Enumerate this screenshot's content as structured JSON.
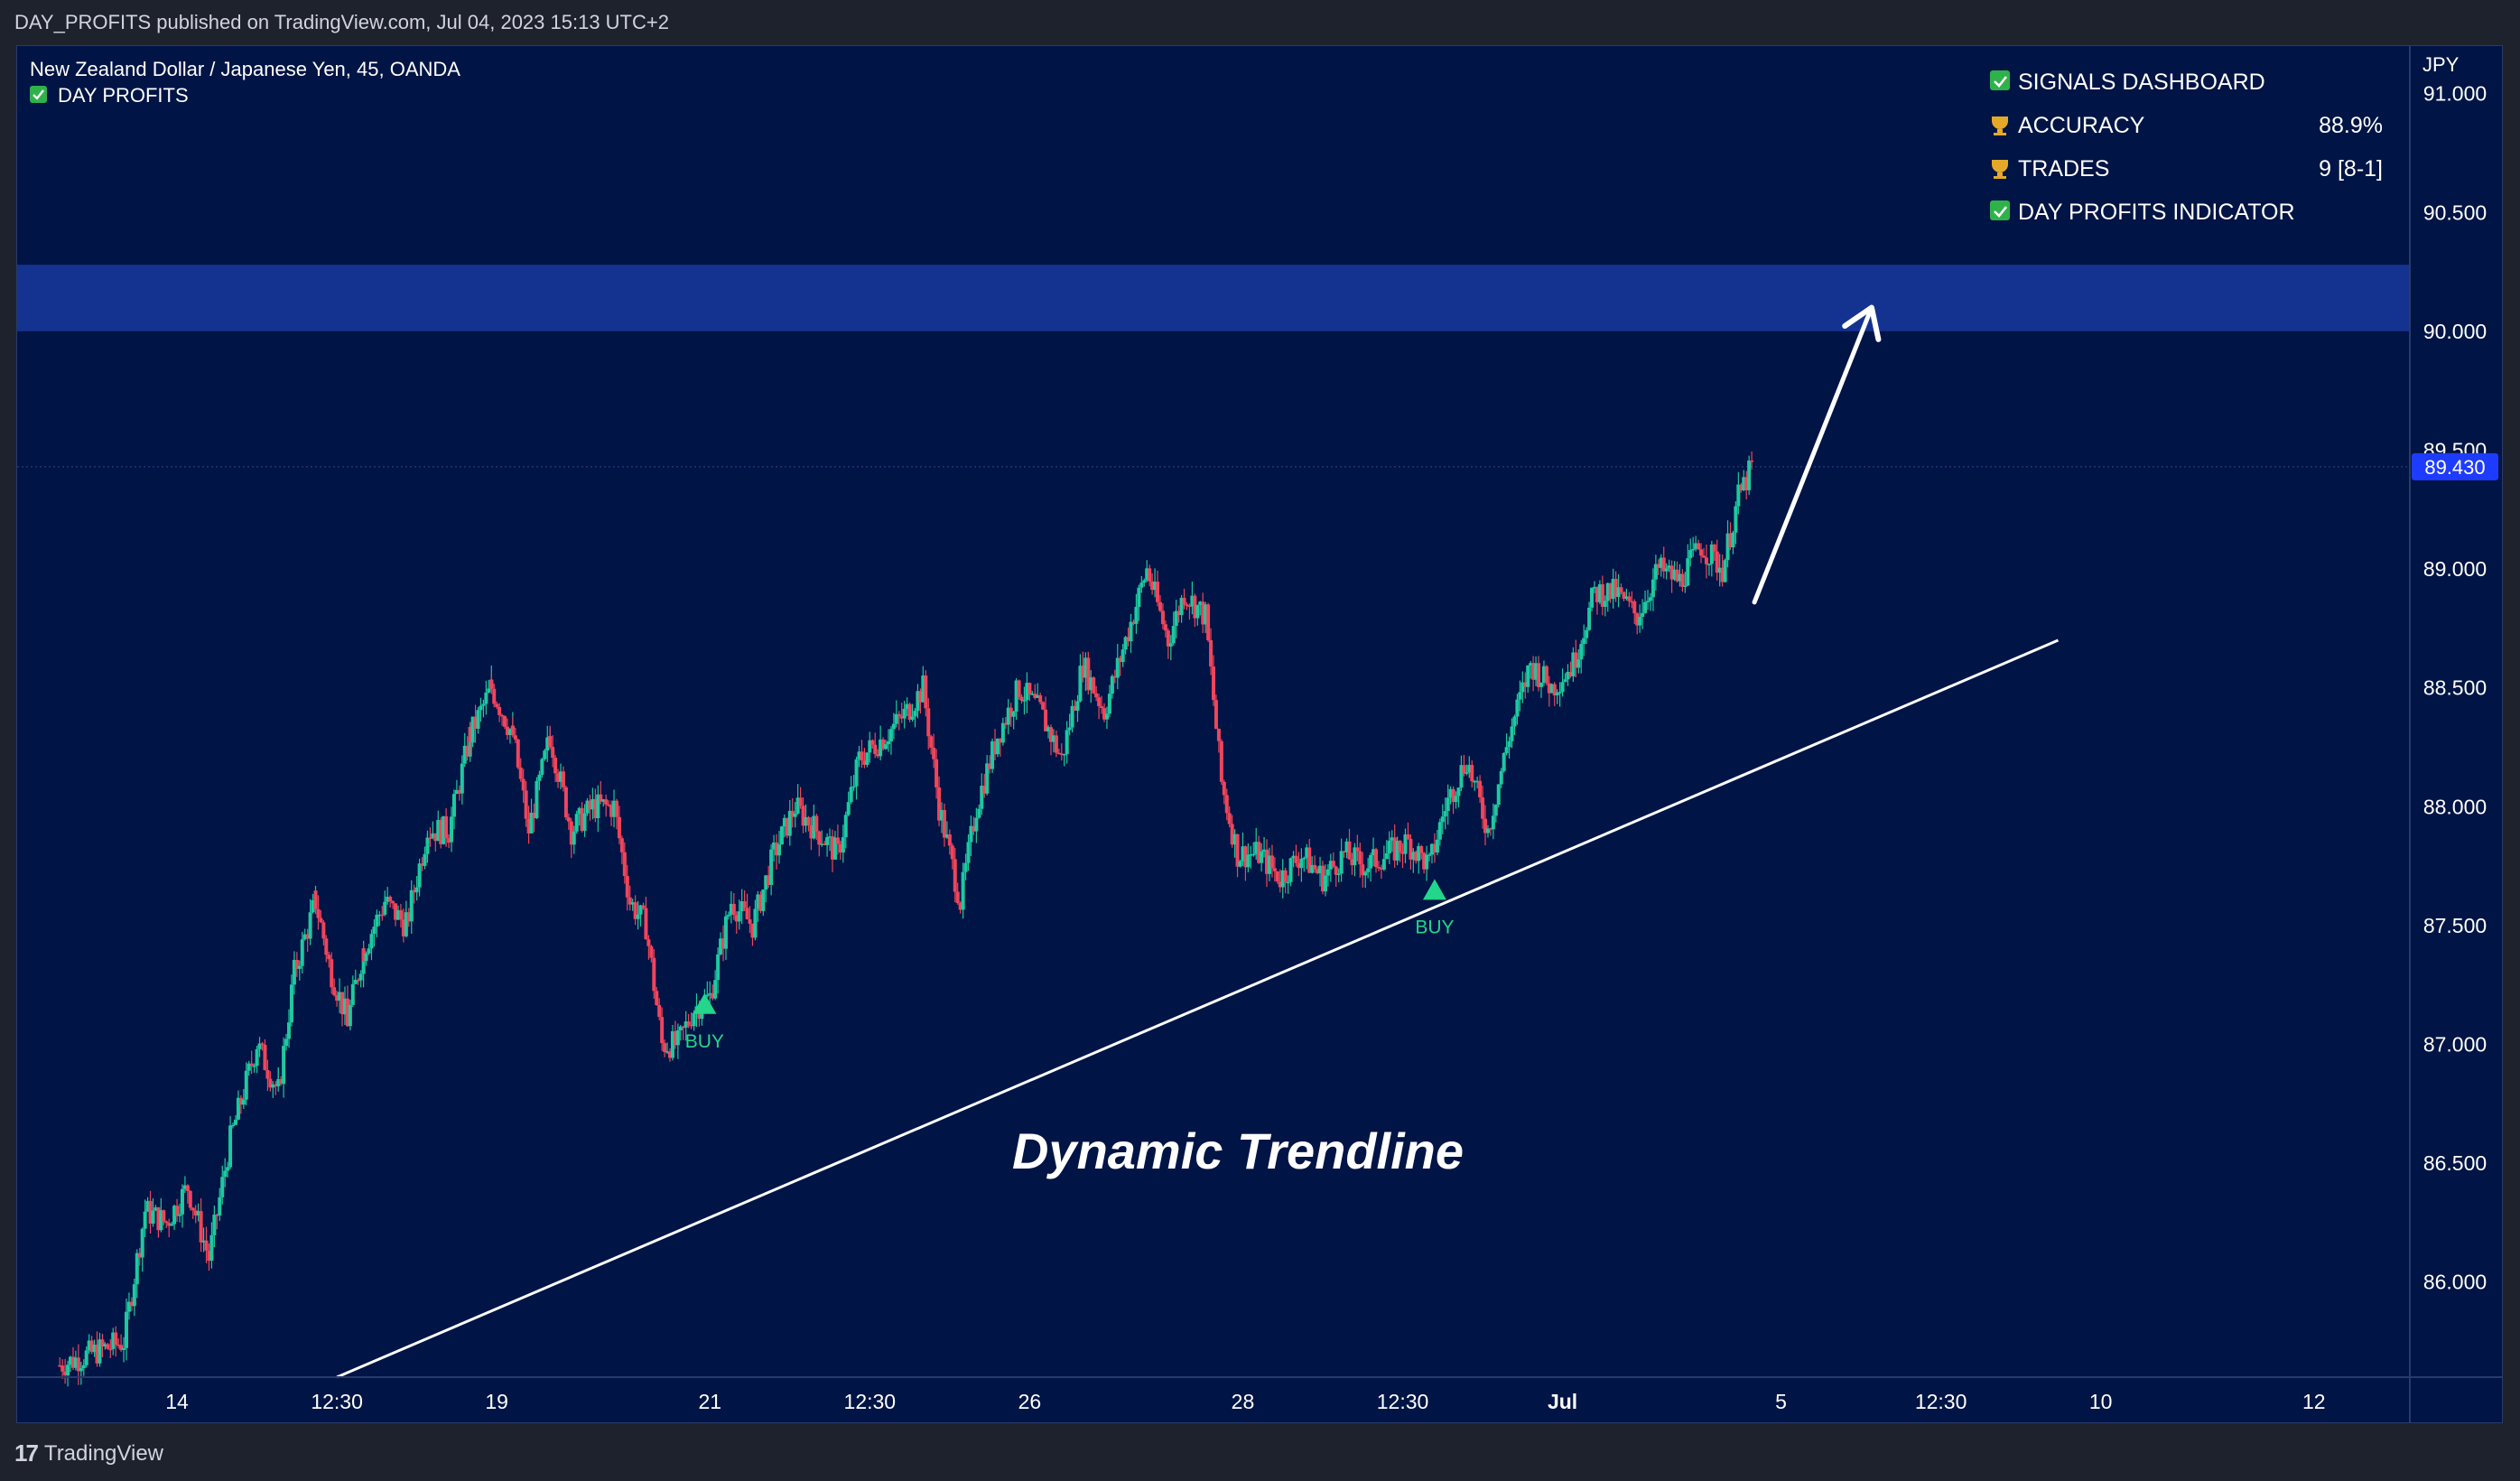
{
  "header": {
    "publish_text": "DAY_PROFITS published on TradingView.com, Jul 04, 2023 15:13 UTC+2"
  },
  "footer": {
    "brand": "TradingView"
  },
  "legend": {
    "symbol_line": "New Zealand Dollar / Japanese Yen, 45, OANDA",
    "indicator_line": "DAY PROFITS"
  },
  "dashboard": {
    "title": "SIGNALS DASHBOARD",
    "rows": [
      {
        "icon": "trophy-icon",
        "label": "ACCURACY",
        "value": "88.9%"
      },
      {
        "icon": "trophy-icon",
        "label": "TRADES",
        "value": "9 [8-1]"
      }
    ],
    "footer": "DAY PROFITS INDICATOR"
  },
  "annotation": {
    "text": "Dynamic Trendline"
  },
  "signals": [
    {
      "label": "BUY",
      "x": 10.9,
      "y": 87.17
    },
    {
      "label": "BUY",
      "x": 24.6,
      "y": 87.65
    }
  ],
  "colors": {
    "background": "#001445",
    "zone": "#14328f",
    "up": "#1ec9a0",
    "down": "#f0455a",
    "signal": "#22d68a",
    "price_tag": "#1e3cff"
  },
  "chart_data": {
    "type": "candlestick",
    "currency": "JPY",
    "ylim": [
      85.6,
      91.2
    ],
    "xlim": [
      -2,
      42.9
    ],
    "x_ticks": [
      {
        "label": "14",
        "x": 1
      },
      {
        "label": "12:30",
        "x": 4
      },
      {
        "label": "19",
        "x": 7
      },
      {
        "label": "21",
        "x": 11
      },
      {
        "label": "12:30",
        "x": 14
      },
      {
        "label": "26",
        "x": 17
      },
      {
        "label": "28",
        "x": 21
      },
      {
        "label": "12:30",
        "x": 24
      },
      {
        "label": "Jul",
        "x": 27
      },
      {
        "label": "5",
        "x": 31.1
      },
      {
        "label": "12:30",
        "x": 34.1
      },
      {
        "label": "10",
        "x": 37.1
      },
      {
        "label": "12",
        "x": 41.1
      }
    ],
    "y_ticks": [
      "86.000",
      "86.500",
      "87.000",
      "87.500",
      "88.000",
      "88.500",
      "89.000",
      "89.500",
      "90.000",
      "90.500",
      "91.000"
    ],
    "last_price": "89.430",
    "last_price_value": 89.43,
    "zone": {
      "from": 90.0,
      "to": 90.28
    },
    "trendline": {
      "x1": 4,
      "y1": 85.6,
      "x2": 36.3,
      "y2": 88.7
    },
    "arrow": {
      "x1": 30.6,
      "y1": 88.86,
      "x2": 32.8,
      "y2": 90.1
    },
    "series": [
      {
        "x": -1.2,
        "y": 85.65
      },
      {
        "x": 0.0,
        "y": 85.75
      },
      {
        "x": 0.4,
        "y": 86.3
      },
      {
        "x": 0.8,
        "y": 86.25
      },
      {
        "x": 1.2,
        "y": 86.4
      },
      {
        "x": 1.6,
        "y": 86.1
      },
      {
        "x": 2.0,
        "y": 86.6
      },
      {
        "x": 2.5,
        "y": 87.0
      },
      {
        "x": 2.9,
        "y": 86.8
      },
      {
        "x": 3.2,
        "y": 87.3
      },
      {
        "x": 3.6,
        "y": 87.6
      },
      {
        "x": 3.9,
        "y": 87.3
      },
      {
        "x": 4.2,
        "y": 87.1
      },
      {
        "x": 4.5,
        "y": 87.4
      },
      {
        "x": 4.9,
        "y": 87.6
      },
      {
        "x": 5.3,
        "y": 87.5
      },
      {
        "x": 5.7,
        "y": 87.9
      },
      {
        "x": 6.1,
        "y": 87.9
      },
      {
        "x": 6.5,
        "y": 88.3
      },
      {
        "x": 6.9,
        "y": 88.5
      },
      {
        "x": 7.3,
        "y": 88.3
      },
      {
        "x": 7.6,
        "y": 87.9
      },
      {
        "x": 8.0,
        "y": 88.3
      },
      {
        "x": 8.4,
        "y": 87.9
      },
      {
        "x": 8.8,
        "y": 88.0
      },
      {
        "x": 9.2,
        "y": 88.0
      },
      {
        "x": 9.5,
        "y": 87.6
      },
      {
        "x": 9.8,
        "y": 87.5
      },
      {
        "x": 10.1,
        "y": 87.0
      },
      {
        "x": 10.4,
        "y": 87.0
      },
      {
        "x": 10.7,
        "y": 87.15
      },
      {
        "x": 11.0,
        "y": 87.2
      },
      {
        "x": 11.4,
        "y": 87.6
      },
      {
        "x": 11.8,
        "y": 87.5
      },
      {
        "x": 12.2,
        "y": 87.8
      },
      {
        "x": 12.6,
        "y": 88.0
      },
      {
        "x": 13.0,
        "y": 87.9
      },
      {
        "x": 13.4,
        "y": 87.8
      },
      {
        "x": 13.8,
        "y": 88.2
      },
      {
        "x": 14.3,
        "y": 88.3
      },
      {
        "x": 14.7,
        "y": 88.4
      },
      {
        "x": 15.0,
        "y": 88.5
      },
      {
        "x": 15.3,
        "y": 88.0
      },
      {
        "x": 15.7,
        "y": 87.6
      },
      {
        "x": 16.0,
        "y": 88.0
      },
      {
        "x": 16.4,
        "y": 88.3
      },
      {
        "x": 16.8,
        "y": 88.5
      },
      {
        "x": 17.2,
        "y": 88.4
      },
      {
        "x": 17.6,
        "y": 88.2
      },
      {
        "x": 18.0,
        "y": 88.6
      },
      {
        "x": 18.4,
        "y": 88.4
      },
      {
        "x": 18.8,
        "y": 88.7
      },
      {
        "x": 19.2,
        "y": 89.0
      },
      {
        "x": 19.6,
        "y": 88.7
      },
      {
        "x": 19.9,
        "y": 88.9
      },
      {
        "x": 20.3,
        "y": 88.8
      },
      {
        "x": 20.6,
        "y": 88.1
      },
      {
        "x": 20.9,
        "y": 87.8
      },
      {
        "x": 21.3,
        "y": 87.8
      },
      {
        "x": 21.7,
        "y": 87.7
      },
      {
        "x": 22.1,
        "y": 87.8
      },
      {
        "x": 22.5,
        "y": 87.7
      },
      {
        "x": 22.9,
        "y": 87.8
      },
      {
        "x": 23.3,
        "y": 87.75
      },
      {
        "x": 23.7,
        "y": 87.8
      },
      {
        "x": 24.1,
        "y": 87.85
      },
      {
        "x": 24.5,
        "y": 87.75
      },
      {
        "x": 24.8,
        "y": 88.0
      },
      {
        "x": 25.2,
        "y": 88.2
      },
      {
        "x": 25.6,
        "y": 87.9
      },
      {
        "x": 26.0,
        "y": 88.3
      },
      {
        "x": 26.4,
        "y": 88.6
      },
      {
        "x": 26.8,
        "y": 88.5
      },
      {
        "x": 27.2,
        "y": 88.6
      },
      {
        "x": 27.6,
        "y": 88.9
      },
      {
        "x": 28.0,
        "y": 88.9
      },
      {
        "x": 28.4,
        "y": 88.8
      },
      {
        "x": 28.8,
        "y": 89.0
      },
      {
        "x": 29.2,
        "y": 88.95
      },
      {
        "x": 29.6,
        "y": 89.1
      },
      {
        "x": 30.0,
        "y": 89.0
      },
      {
        "x": 30.3,
        "y": 89.3
      },
      {
        "x": 30.6,
        "y": 89.45
      }
    ]
  }
}
